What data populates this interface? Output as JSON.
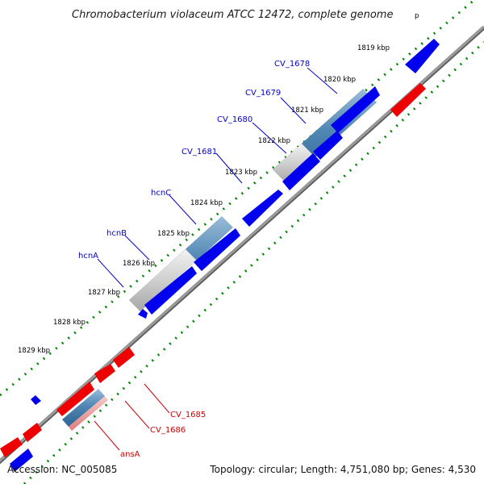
{
  "title": "Chromobacterium violaceum ATCC 12472, complete genome",
  "title_mark": "p",
  "accession_text": "Accession: NC_005085",
  "summary_text": "Topology: circular; Length: 4,751,080 bp; Genes: 4,530",
  "colors": {
    "backbone": "#8c8c8c",
    "forward_gene": "#0000ee",
    "reverse_gene": "#ee0000",
    "operon_blue": "#4f86b4",
    "operon_grey": "#c7c7c7",
    "forward_label": "#0000cc",
    "reverse_label": "#cc0000",
    "gc_skew": "#008800"
  },
  "kbp_ticks": [
    "1819 kbp",
    "1820 kbp",
    "1821 kbp",
    "1822 kbp",
    "1823 kbp",
    "1824 kbp",
    "1825 kbp",
    "1826 kbp",
    "1827 kbp",
    "1828 kbp",
    "1829 kbp"
  ],
  "forward_labels": [
    "CV_1678",
    "CV_1679",
    "CV_1680",
    "CV_1681",
    "hcnC",
    "hcnB",
    "hcnA"
  ],
  "reverse_labels": [
    "CV_1685",
    "CV_1686",
    "ansA"
  ]
}
